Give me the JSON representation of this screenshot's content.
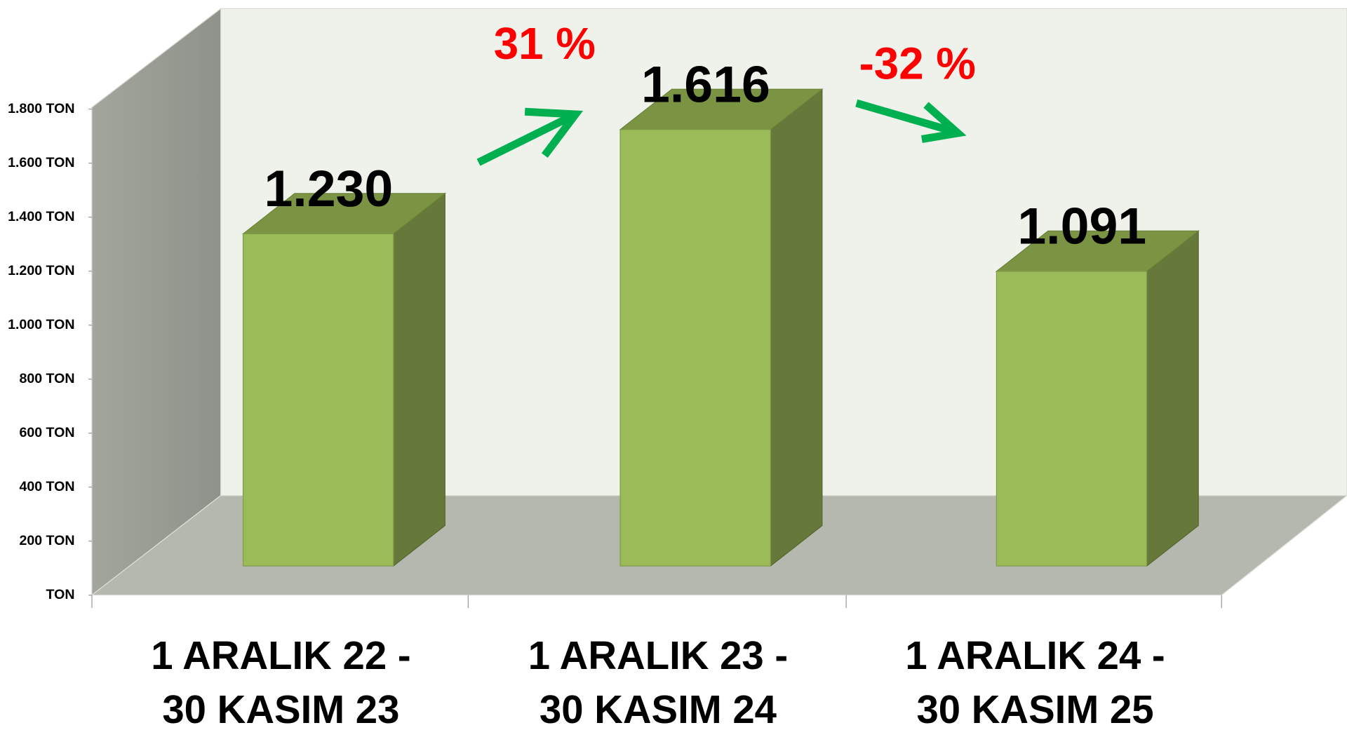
{
  "chart_data": {
    "type": "bar3d",
    "categories": [
      "1 ARALIK 22 -\n30 KASIM 23",
      "1 ARALIK 23 -\n30 KASIM 24",
      "1 ARALIK 24 -\n30 KASIM 25"
    ],
    "values": [
      1230,
      1616,
      1091
    ],
    "value_labels": [
      "1.230",
      "1.616",
      "1.091"
    ],
    "color": "#9bbb59",
    "ylim": [
      0,
      1800
    ],
    "yticks": [
      {
        "value": 0,
        "label": "TON"
      },
      {
        "value": 200,
        "label": "200 TON"
      },
      {
        "value": 400,
        "label": "400 TON"
      },
      {
        "value": 600,
        "label": "600 TON"
      },
      {
        "value": 800,
        "label": "800 TON"
      },
      {
        "value": 1000,
        "label": "1.000 TON"
      },
      {
        "value": 1200,
        "label": "1.200 TON"
      },
      {
        "value": 1400,
        "label": "1.400 TON"
      },
      {
        "value": 1600,
        "label": "1.600 TON"
      },
      {
        "value": 1800,
        "label": "1.800 TON"
      }
    ],
    "annotations": [
      "31 %",
      "-32 %"
    ]
  }
}
